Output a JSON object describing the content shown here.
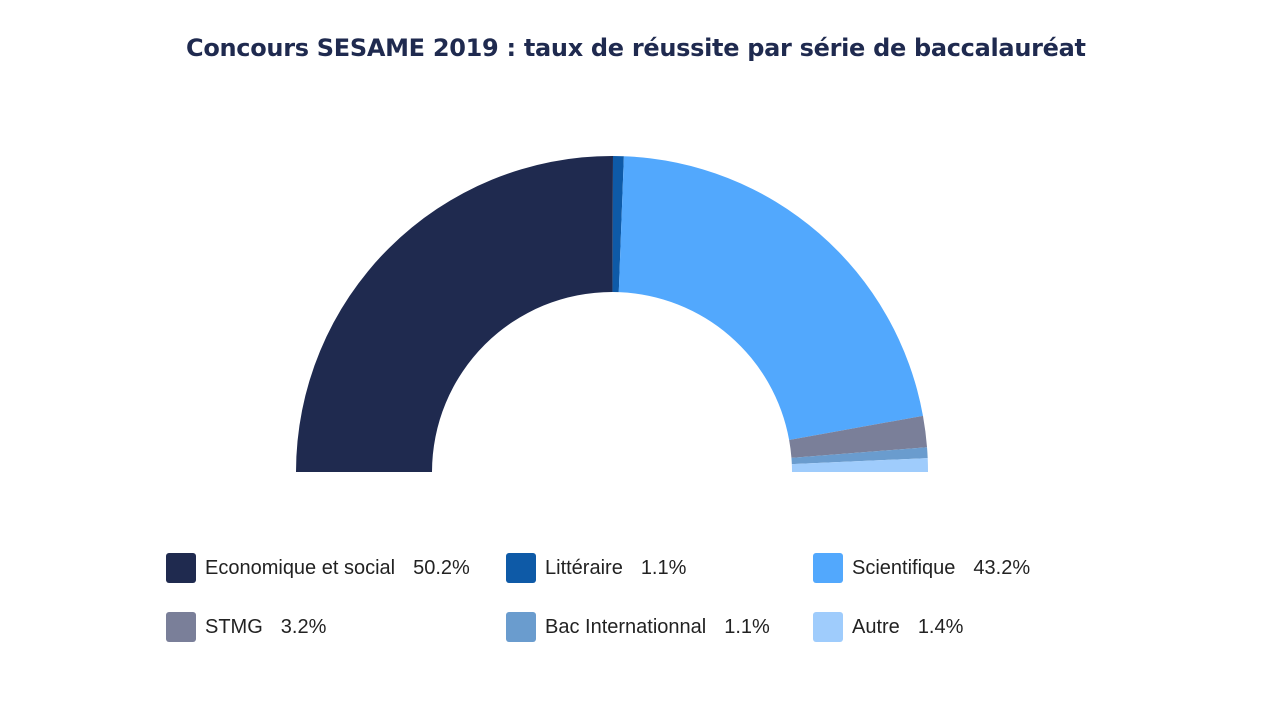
{
  "chart_data": {
    "type": "pie",
    "variant": "semi-donut",
    "title": "Concours SESAME 2019 : taux de réussite par série de baccalauréat",
    "legend_position": "bottom",
    "categories": [
      "Economique et social",
      "Littéraire",
      "Scientifique",
      "STMG",
      "Bac Internationnal",
      "Autre"
    ],
    "values": [
      50.2,
      1.1,
      43.2,
      3.2,
      1.1,
      1.4
    ],
    "value_labels": [
      "50.2%",
      "1.1%",
      "43.2%",
      "3.2%",
      "1.1%",
      "1.4%"
    ],
    "colors": [
      "#1f2a4f",
      "#0e5aa7",
      "#52a8fd",
      "#7a7f99",
      "#6a9cce",
      "#9fccfc"
    ]
  }
}
